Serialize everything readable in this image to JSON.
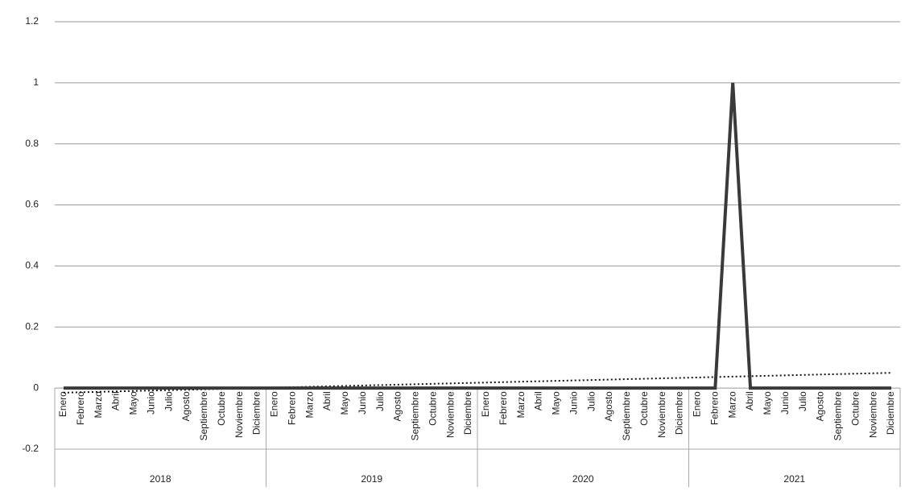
{
  "chart_data": {
    "type": "line",
    "categories": [
      "Enero",
      "Febrero",
      "Marzo",
      "Abril",
      "Mayo",
      "Junio",
      "Julio",
      "Agosto",
      "Septiembre",
      "Octubre",
      "Noviembre",
      "Diciembre",
      "Enero",
      "Febrero",
      "Marzo",
      "Abril",
      "Mayo",
      "Junio",
      "Julio",
      "Agosto",
      "Septiembre",
      "Octubre",
      "Noviembre",
      "Diciembre",
      "Enero",
      "Febrero",
      "Marzo",
      "Abril",
      "Mayo",
      "Junio",
      "Julio",
      "Agosto",
      "Septiembre",
      "Octubre",
      "Noviembre",
      "Diciembre",
      "Enero",
      "Febrero",
      "Marzo",
      "Abril",
      "Mayo",
      "Junio",
      "Julio",
      "Agosto",
      "Septiembre",
      "Octubre",
      "Noviembre",
      "Diciembre"
    ],
    "groups": [
      "2018",
      "2019",
      "2020",
      "2021"
    ],
    "values": [
      0,
      0,
      0,
      0,
      0,
      0,
      0,
      0,
      0,
      0,
      0,
      0,
      0,
      0,
      0,
      0,
      0,
      0,
      0,
      0,
      0,
      0,
      0,
      0,
      0,
      0,
      0,
      0,
      0,
      0,
      0,
      0,
      0,
      0,
      0,
      0,
      0,
      0,
      1,
      0,
      0,
      0,
      0,
      0,
      0,
      0,
      0,
      0
    ],
    "color": "#3a3a3a",
    "trendline": {
      "start": -0.015,
      "end": 0.05,
      "color": "#111111"
    },
    "ylim": [
      -0.2,
      1.2
    ],
    "yticks": [
      -0.2,
      0,
      0.2,
      0.4,
      0.6,
      0.8,
      1,
      1.2
    ],
    "grid": true
  }
}
